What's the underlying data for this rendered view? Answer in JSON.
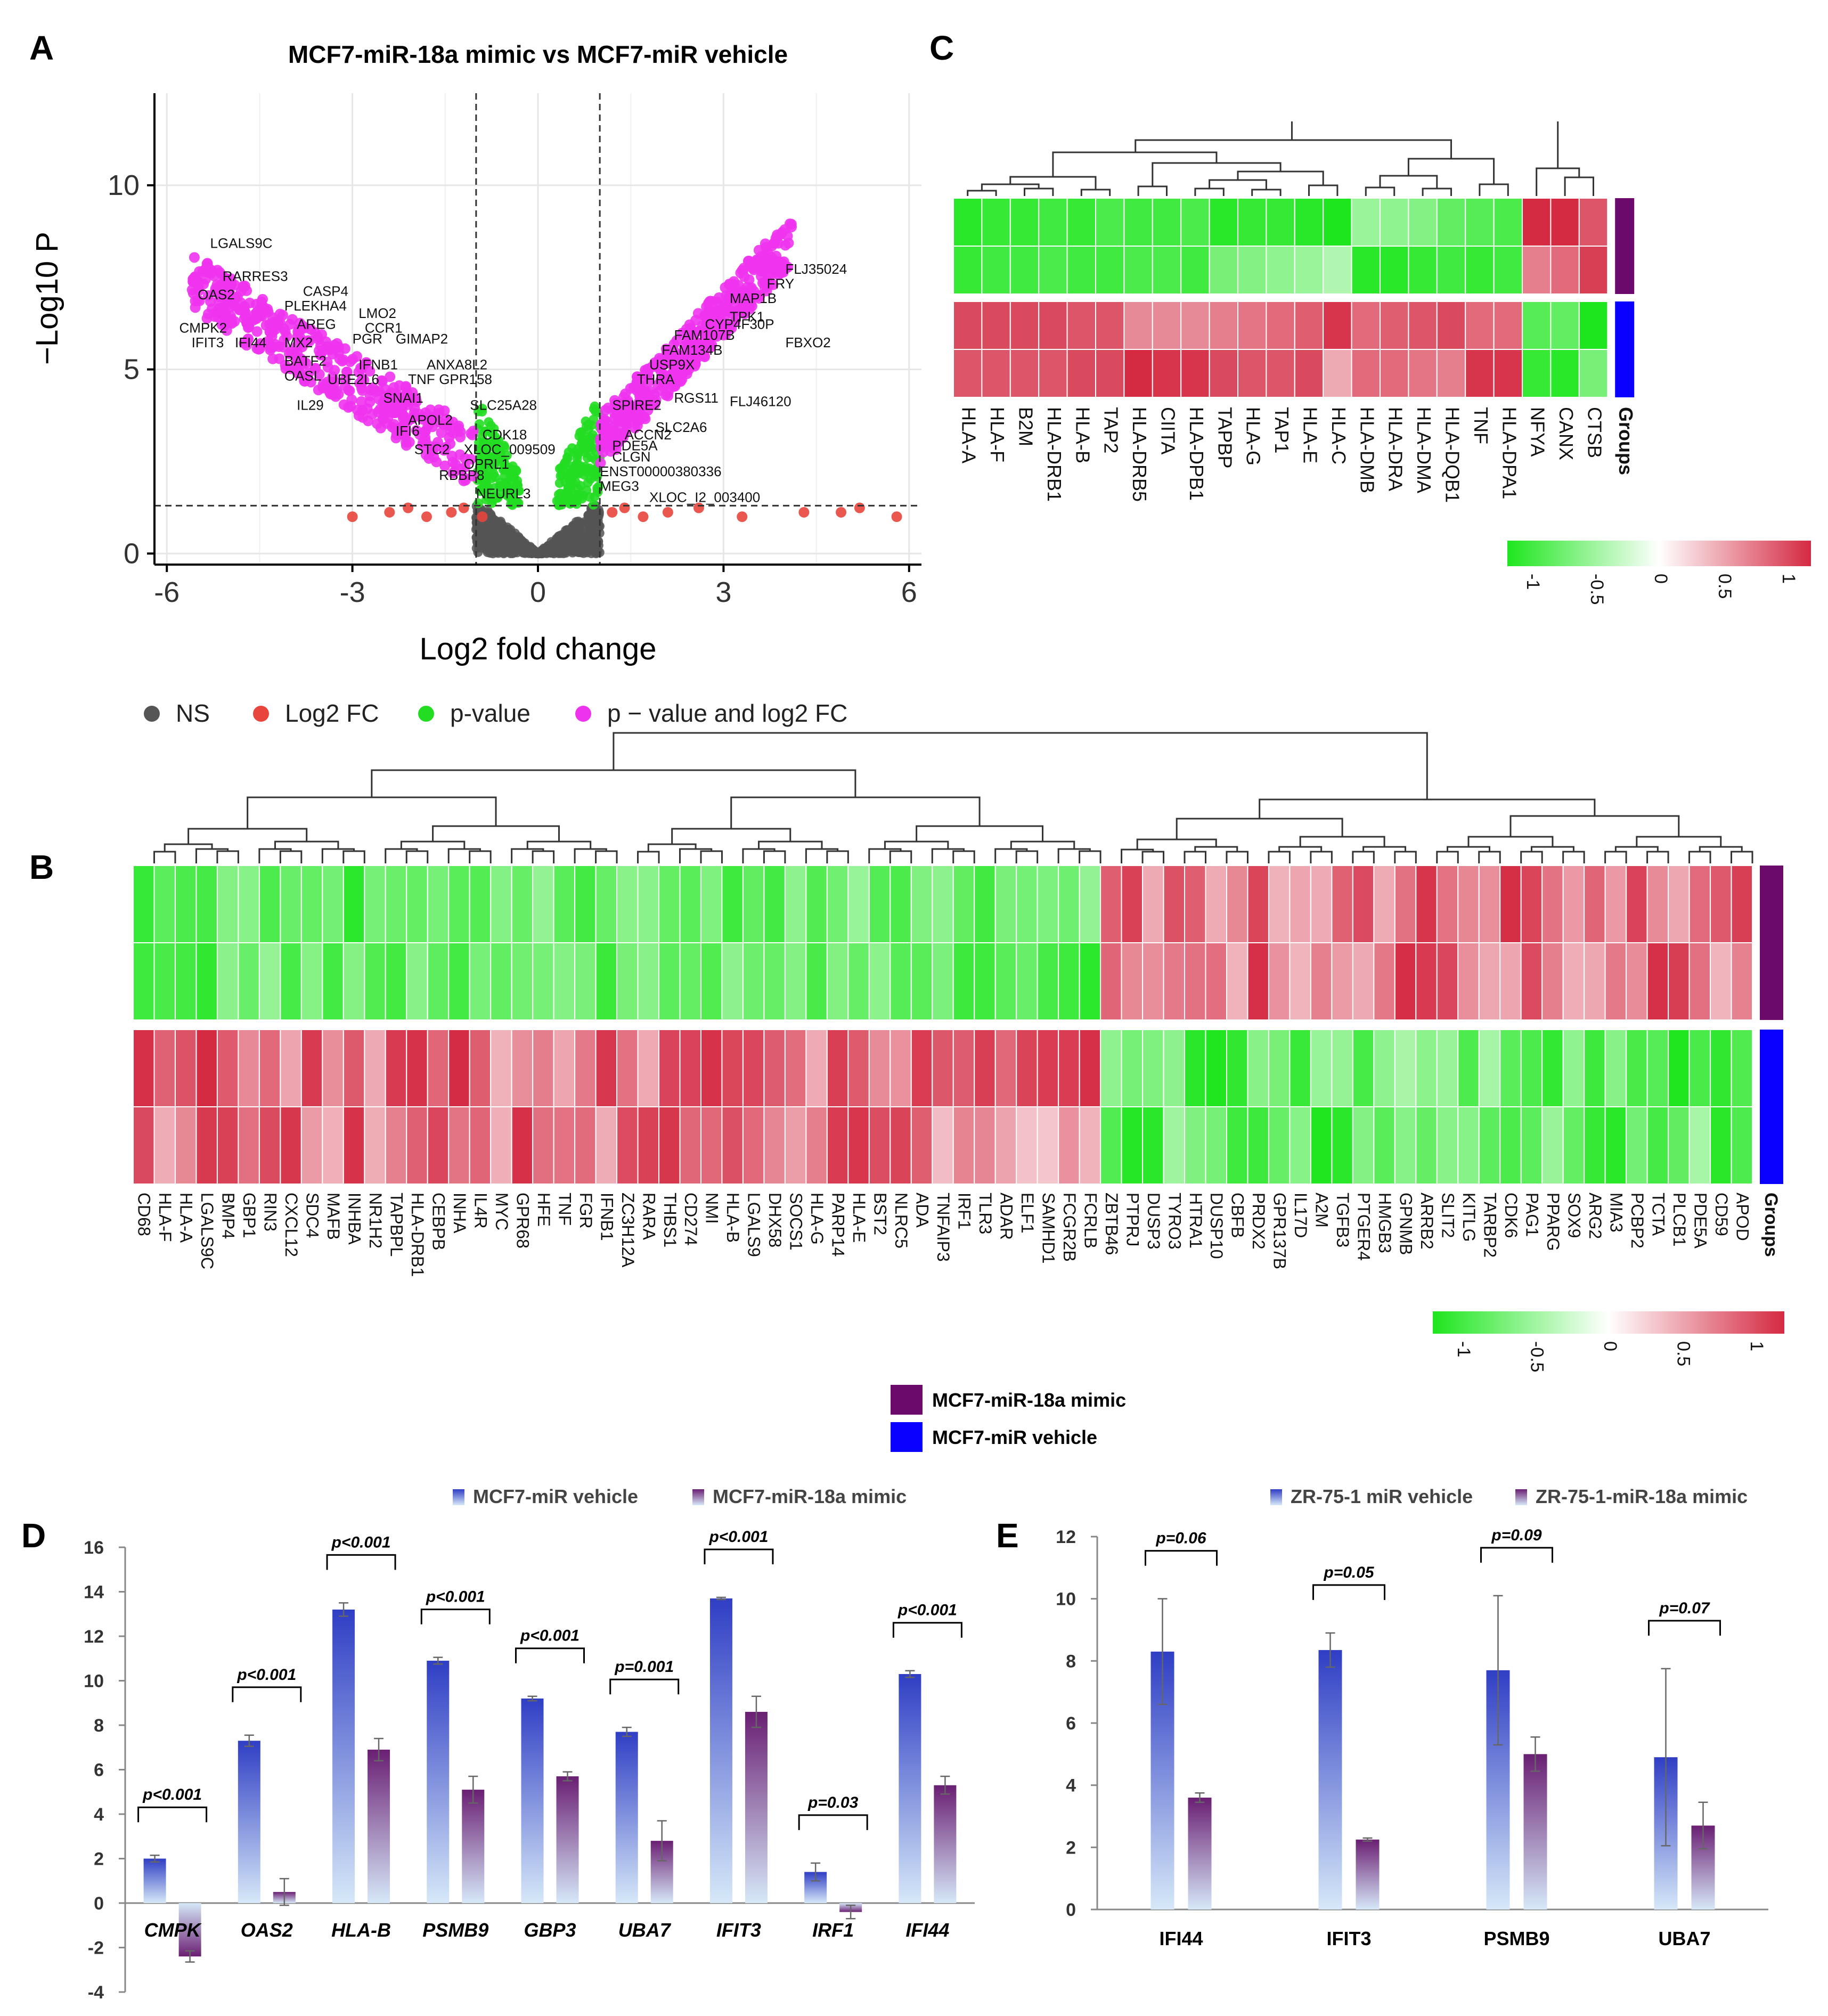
{
  "figure": {
    "panels": [
      "A",
      "B",
      "C",
      "D",
      "E"
    ]
  },
  "colors": {
    "ns": "#555555",
    "log2fc": "#e8453c",
    "pvalue": "#22dd22",
    "both": "#ee33ee",
    "heat_low": "#1ee61e",
    "heat_mid": "#ffffff",
    "heat_high": "#d42a42",
    "mimic_group": "#6b0a6b",
    "vehicle_group": "#0a00ff",
    "bar_blue": "#2f3ec4",
    "bar_purple": "#6a1f73",
    "bar_light": "#cfe3f7"
  },
  "chart_data": [
    {
      "id": "A",
      "type": "scatter",
      "title": "MCF7-miR-18a mimic  vs MCF7-miR vehicle",
      "xlabel": "Log2 fold change",
      "ylabel": "−Log10 P",
      "xlim": [
        -6.2,
        6.2
      ],
      "ylim": [
        -0.3,
        12.5
      ],
      "xticks": [
        -6,
        -3,
        0,
        3,
        6
      ],
      "yticks": [
        0,
        5,
        10
      ],
      "thresholds": {
        "log2fc": [
          -1,
          1
        ],
        "neglog10p": 1.3
      },
      "legend": [
        {
          "key": "ns",
          "label": "NS"
        },
        {
          "key": "log2fc",
          "label": "Log2 FC"
        },
        {
          "key": "pvalue",
          "label": "p-value"
        },
        {
          "key": "both",
          "label": "p − value and log2 FC"
        }
      ],
      "labels": [
        {
          "text": "LGALS9C",
          "x": -5.3,
          "y": 8.3
        },
        {
          "text": "RARRES3",
          "x": -5.1,
          "y": 7.4
        },
        {
          "text": "OAS2",
          "x": -5.5,
          "y": 6.9
        },
        {
          "text": "CASP4",
          "x": -3.8,
          "y": 7.0
        },
        {
          "text": "PLEKHA4",
          "x": -4.1,
          "y": 6.6
        },
        {
          "text": "CMPK2",
          "x": -5.8,
          "y": 6.0
        },
        {
          "text": "IFIT3",
          "x": -5.6,
          "y": 5.6
        },
        {
          "text": "IFI44",
          "x": -4.9,
          "y": 5.6
        },
        {
          "text": "MX2",
          "x": -4.1,
          "y": 5.6
        },
        {
          "text": "AREG",
          "x": -3.9,
          "y": 6.1
        },
        {
          "text": "LMO2",
          "x": -2.9,
          "y": 6.4
        },
        {
          "text": "CCR1",
          "x": -2.8,
          "y": 6.0
        },
        {
          "text": "PGR",
          "x": -3.0,
          "y": 5.7
        },
        {
          "text": "GIMAP2",
          "x": -2.3,
          "y": 5.7
        },
        {
          "text": "BATF2",
          "x": -4.1,
          "y": 5.1
        },
        {
          "text": "OASL",
          "x": -4.1,
          "y": 4.7
        },
        {
          "text": "UBE2L6",
          "x": -3.4,
          "y": 4.6
        },
        {
          "text": "IFNB1",
          "x": -2.9,
          "y": 5.0
        },
        {
          "text": "ANXA8L2",
          "x": -1.8,
          "y": 5.0
        },
        {
          "text": "TNF",
          "x": -2.1,
          "y": 4.6
        },
        {
          "text": "GPR158",
          "x": -1.6,
          "y": 4.6
        },
        {
          "text": "SNAI1",
          "x": -2.5,
          "y": 4.1
        },
        {
          "text": "IL29",
          "x": -3.9,
          "y": 3.9
        },
        {
          "text": "IFI6",
          "x": -2.3,
          "y": 3.2
        },
        {
          "text": "APOL2",
          "x": -2.1,
          "y": 3.5
        },
        {
          "text": "STC2",
          "x": -2.0,
          "y": 2.7
        },
        {
          "text": "RBBP8",
          "x": -1.6,
          "y": 2.0
        },
        {
          "text": "NEURL3",
          "x": -1.0,
          "y": 1.5
        },
        {
          "text": "SLC25A28",
          "x": -1.1,
          "y": 3.9
        },
        {
          "text": "CDK18",
          "x": -0.9,
          "y": 3.1
        },
        {
          "text": "XLOC_009509",
          "x": -1.2,
          "y": 2.7
        },
        {
          "text": "OPRL1",
          "x": -1.2,
          "y": 2.3
        },
        {
          "text": "FLJ35024",
          "x": 4.0,
          "y": 7.6
        },
        {
          "text": "FRY",
          "x": 3.7,
          "y": 7.2
        },
        {
          "text": "MAP1B",
          "x": 3.1,
          "y": 6.8
        },
        {
          "text": "TPK1",
          "x": 3.1,
          "y": 6.3
        },
        {
          "text": "CYP4F30P",
          "x": 2.7,
          "y": 6.1
        },
        {
          "text": "FBXO2",
          "x": 4.0,
          "y": 5.6
        },
        {
          "text": "FAM107B",
          "x": 2.2,
          "y": 5.8
        },
        {
          "text": "FAM134B",
          "x": 2.0,
          "y": 5.4
        },
        {
          "text": "USP9X",
          "x": 1.8,
          "y": 5.0
        },
        {
          "text": "THRA",
          "x": 1.6,
          "y": 4.6
        },
        {
          "text": "FLJ46120",
          "x": 3.1,
          "y": 4.0
        },
        {
          "text": "RGS11",
          "x": 2.2,
          "y": 4.1
        },
        {
          "text": "SPIRE2",
          "x": 1.2,
          "y": 3.9
        },
        {
          "text": "SLC2A6",
          "x": 1.9,
          "y": 3.3
        },
        {
          "text": "ACCN2",
          "x": 1.4,
          "y": 3.1
        },
        {
          "text": "PDE5A",
          "x": 1.2,
          "y": 2.8
        },
        {
          "text": "CLGN",
          "x": 1.2,
          "y": 2.5
        },
        {
          "text": "ENST00000380336",
          "x": 1.0,
          "y": 2.1
        },
        {
          "text": "MEG3",
          "x": 1.0,
          "y": 1.7
        },
        {
          "text": "XLOC_I2_003400",
          "x": 1.8,
          "y": 1.4
        }
      ]
    },
    {
      "id": "C",
      "type": "heatmap",
      "columns": [
        "HLA-A",
        "HLA-F",
        "B2M",
        "HLA-DRB1",
        "HLA-B",
        "TAP2",
        "HLA-DRB5",
        "CIITA",
        "HLA-DPB1",
        "TAPBP",
        "HLA-G",
        "TAP1",
        "HLA-E",
        "HLA-C",
        "HLA-DMB",
        "HLA-DRA",
        "HLA-DMA",
        "HLA-DQB1",
        "TNF",
        "HLA-DPA1",
        "NFYA",
        "CANX",
        "CTSB"
      ],
      "groups_label": "Groups",
      "rows": [
        {
          "group": "mimic",
          "values": [
            -0.95,
            -0.9,
            -0.9,
            -0.85,
            -0.9,
            -0.8,
            -0.85,
            -0.85,
            -0.8,
            -0.95,
            -0.9,
            -0.9,
            -0.95,
            -1.0,
            -0.45,
            -0.5,
            -0.55,
            -0.7,
            -0.75,
            -0.8,
            1.0,
            1.0,
            0.8
          ]
        },
        {
          "group": "mimic",
          "values": [
            -0.9,
            -0.85,
            -0.85,
            -0.8,
            -0.85,
            -0.85,
            -0.8,
            -0.8,
            -0.85,
            -0.6,
            -0.55,
            -0.5,
            -0.45,
            -0.35,
            -0.95,
            -0.95,
            -0.9,
            -0.85,
            -0.9,
            -0.85,
            0.6,
            0.7,
            0.9
          ]
        },
        {
          "group": "vehicle",
          "values": [
            0.85,
            0.85,
            0.85,
            0.85,
            0.8,
            0.8,
            0.55,
            0.55,
            0.55,
            0.6,
            0.65,
            0.7,
            0.75,
            0.95,
            0.7,
            0.75,
            0.8,
            0.85,
            0.7,
            0.7,
            -0.75,
            -0.7,
            -1.0
          ]
        },
        {
          "group": "vehicle",
          "values": [
            0.8,
            0.8,
            0.8,
            0.8,
            0.85,
            0.85,
            1.0,
            0.95,
            0.95,
            0.85,
            0.8,
            0.8,
            0.85,
            0.4,
            0.7,
            0.7,
            0.65,
            0.6,
            0.95,
            0.95,
            -0.9,
            -0.95,
            -0.6
          ]
        }
      ],
      "scale": {
        "ticks": [
          "-1",
          "-0.5",
          "0",
          "0.5",
          "1"
        ]
      }
    },
    {
      "id": "B",
      "type": "heatmap",
      "columns": [
        "CD68",
        "HLA-F",
        "HLA-A",
        "LGALS9C",
        "BMP4",
        "GBP1",
        "RIN3",
        "CXCL12",
        "SDC4",
        "MAFB",
        "INHBA",
        "NR1H2",
        "TAPBPL",
        "HLA-DRB1",
        "CEBPB",
        "INHA",
        "IL4R",
        "MYC",
        "GPR68",
        "HFE",
        "TNF",
        "FGR",
        "IFNB1",
        "ZC3H12A",
        "RARA",
        "THBS1",
        "CD274",
        "NMI",
        "HLA-B",
        "LGALS9",
        "DHX58",
        "SOCS1",
        "HLA-G",
        "PARP14",
        "HLA-E",
        "BST2",
        "NLRC5",
        "ADA",
        "TNFAIP3",
        "IRF1",
        "TLR3",
        "ADAR",
        "ELF1",
        "SAMHD1",
        "FCGR2B",
        "FCRLB",
        "ZBTB46",
        "PTPRJ",
        "DUSP3",
        "TYRO3",
        "HTRA1",
        "DUSP10",
        "CBFB",
        "PRDX2",
        "GPR137B",
        "IL17D",
        "A2M",
        "TGFB3",
        "PTGER4",
        "HMGB3",
        "GPNMB",
        "ARRB2",
        "SLIT2",
        "KITLG",
        "TARBP2",
        "CDK6",
        "PAG1",
        "PPARG",
        "SOX9",
        "ARG2",
        "MIA3",
        "PCBP2",
        "TCTA",
        "PLCB1",
        "PDE5A",
        "CD59",
        "APOD"
      ],
      "groups_label": "Groups",
      "scale": {
        "ticks": [
          "-1",
          "-0.5",
          "0",
          "0.5",
          "1"
        ]
      }
    },
    {
      "id": "D",
      "type": "bar",
      "legend": [
        "MCF7-miR vehicle",
        "MCF7-miR-18a mimic"
      ],
      "categories": [
        "CMPK",
        "OAS2",
        "HLA-B",
        "PSMB9",
        "GBP3",
        "UBA7",
        "IFIT3",
        "IRF1",
        "IFI44"
      ],
      "series": [
        {
          "name": "MCF7-miR vehicle",
          "values": [
            2.0,
            7.3,
            13.2,
            10.9,
            9.2,
            7.7,
            13.7,
            1.4,
            10.3
          ],
          "errors": [
            0.15,
            0.25,
            0.3,
            0.15,
            0.1,
            0.2,
            0.05,
            0.4,
            0.15
          ]
        },
        {
          "name": "MCF7-miR-18a mimic",
          "values": [
            -2.4,
            0.5,
            6.9,
            5.1,
            5.7,
            2.8,
            8.6,
            -0.4,
            5.3
          ],
          "errors": [
            0.25,
            0.6,
            0.5,
            0.6,
            0.2,
            0.9,
            0.7,
            0.3,
            0.4
          ]
        }
      ],
      "pvalues": [
        "p<0.001",
        "p<0.001",
        "p<0.001",
        "p<0.001",
        "p<0.001",
        "p=0.001",
        "p<0.001",
        "p=0.03",
        "p<0.001"
      ],
      "ylim": [
        -4,
        16
      ],
      "yticks": [
        "-4",
        "-2",
        "0",
        "2",
        "4",
        "6",
        "8",
        "10",
        "12",
        "14",
        "16"
      ]
    },
    {
      "id": "E",
      "type": "bar",
      "legend": [
        "ZR-75-1 miR vehicle",
        "ZR-75-1-miR-18a mimic"
      ],
      "categories": [
        "IFI44",
        "IFIT3",
        "PSMB9",
        "UBA7"
      ],
      "series": [
        {
          "name": "ZR-75-1 miR vehicle",
          "values": [
            8.3,
            8.35,
            7.7,
            4.9
          ],
          "errors": [
            1.7,
            0.55,
            2.4,
            2.85
          ]
        },
        {
          "name": "ZR-75-1-miR-18a mimic",
          "values": [
            3.6,
            2.25,
            5.0,
            2.7
          ],
          "errors": [
            0.15,
            0.05,
            0.55,
            0.75
          ]
        }
      ],
      "pvalues": [
        "p=0.06",
        "p=0.05",
        "p=0.09",
        "p=0.07"
      ],
      "ylim": [
        0,
        12
      ],
      "yticks": [
        "0",
        "2",
        "4",
        "6",
        "8",
        "10",
        "12"
      ]
    }
  ],
  "group_legend": [
    {
      "key": "mimic",
      "label": "MCF7-miR-18a mimic"
    },
    {
      "key": "vehicle",
      "label": "MCF7-miR vehicle"
    }
  ]
}
